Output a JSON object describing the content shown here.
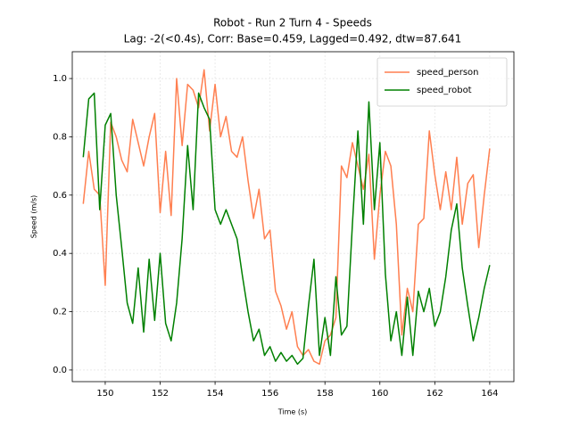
{
  "chart_data": {
    "type": "line",
    "title": "Robot - Run 2 Turn 4 - Speeds",
    "subtitle": "Lag: -2(<0.4s), Corr: Base=0.459, Lagged=0.492, dtw=87.641",
    "x_label": "Time (s)",
    "y_label": "Speed (m/s)",
    "x": [
      149.2,
      149.4,
      149.6,
      149.8,
      150.0,
      150.2,
      150.4,
      150.6,
      150.8,
      151.0,
      151.2,
      151.4,
      151.6,
      151.8,
      152.0,
      152.2,
      152.4,
      152.6,
      152.8,
      153.0,
      153.2,
      153.4,
      153.6,
      153.8,
      154.0,
      154.2,
      154.4,
      154.6,
      154.8,
      155.0,
      155.2,
      155.4,
      155.6,
      155.8,
      156.0,
      156.2,
      156.4,
      156.6,
      156.8,
      157.0,
      157.2,
      157.4,
      157.6,
      157.8,
      158.0,
      158.2,
      158.4,
      158.6,
      158.8,
      159.0,
      159.2,
      159.4,
      159.6,
      159.8,
      160.0,
      160.2,
      160.4,
      160.6,
      160.8,
      161.0,
      161.2,
      161.4,
      161.6,
      161.8,
      162.0,
      162.2,
      162.4,
      162.6,
      162.8,
      163.0,
      163.2,
      163.4,
      163.6,
      163.8,
      164.0
    ],
    "series": [
      {
        "name": "speed_person",
        "color": "#ff7f50",
        "values": [
          0.57,
          0.75,
          0.62,
          0.6,
          0.29,
          0.85,
          0.8,
          0.72,
          0.68,
          0.86,
          0.78,
          0.7,
          0.8,
          0.88,
          0.54,
          0.75,
          0.53,
          1.0,
          0.77,
          0.98,
          0.96,
          0.9,
          1.03,
          0.82,
          0.98,
          0.8,
          0.87,
          0.75,
          0.73,
          0.8,
          0.65,
          0.52,
          0.62,
          0.45,
          0.48,
          0.27,
          0.22,
          0.14,
          0.2,
          0.08,
          0.05,
          0.07,
          0.03,
          0.02,
          0.1,
          0.12,
          0.18,
          0.7,
          0.66,
          0.78,
          0.7,
          0.62,
          0.74,
          0.38,
          0.6,
          0.75,
          0.7,
          0.5,
          0.12,
          0.28,
          0.2,
          0.5,
          0.52,
          0.82,
          0.67,
          0.55,
          0.68,
          0.55,
          0.73,
          0.5,
          0.64,
          0.67,
          0.42,
          0.6,
          0.76
        ]
      },
      {
        "name": "speed_robot",
        "color": "#008000",
        "values": [
          0.73,
          0.93,
          0.95,
          0.55,
          0.84,
          0.88,
          0.6,
          0.42,
          0.23,
          0.16,
          0.35,
          0.13,
          0.38,
          0.17,
          0.4,
          0.16,
          0.1,
          0.23,
          0.45,
          0.77,
          0.55,
          0.95,
          0.9,
          0.86,
          0.55,
          0.5,
          0.55,
          0.5,
          0.45,
          0.32,
          0.2,
          0.1,
          0.14,
          0.05,
          0.08,
          0.03,
          0.06,
          0.03,
          0.05,
          0.02,
          0.04,
          0.22,
          0.38,
          0.05,
          0.18,
          0.05,
          0.32,
          0.12,
          0.15,
          0.5,
          0.82,
          0.5,
          0.92,
          0.55,
          0.78,
          0.33,
          0.1,
          0.2,
          0.05,
          0.25,
          0.05,
          0.27,
          0.2,
          0.28,
          0.15,
          0.2,
          0.32,
          0.48,
          0.57,
          0.35,
          0.22,
          0.1,
          0.18,
          0.28,
          0.36
        ]
      }
    ],
    "xlim": [
      148.8,
      164.88
    ],
    "ylim": [
      -0.04,
      1.092
    ],
    "xticks": [
      150,
      152,
      154,
      156,
      158,
      160,
      162,
      164
    ],
    "yticks": [
      {
        "value": 0,
        "label": "0.0"
      },
      0.2,
      0.4,
      0.6,
      0.8,
      {
        "value": 1,
        "label": "1.0"
      }
    ],
    "grid": true,
    "legend": "upper right"
  }
}
